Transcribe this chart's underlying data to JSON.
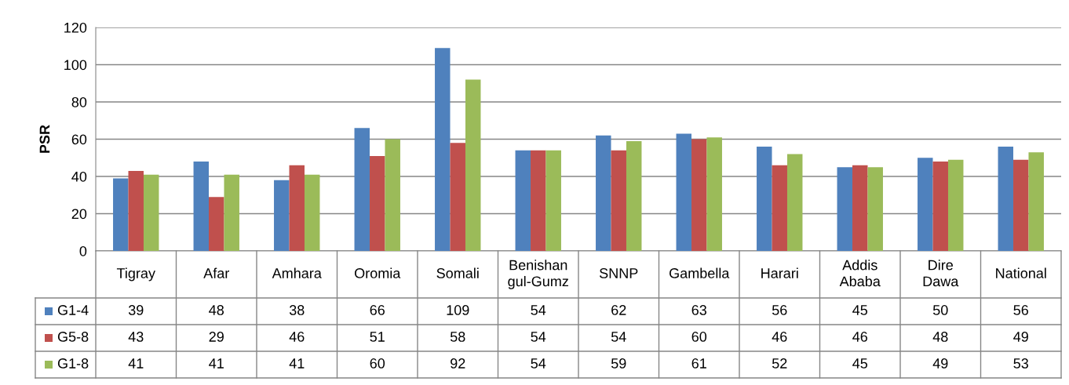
{
  "chart_data": {
    "type": "bar",
    "ylabel": "PSR",
    "categories": [
      "Tigray",
      "Afar",
      "Amhara",
      "Oromia",
      "Somali",
      "Benishan\ngul-Gumz",
      "SNNP",
      "Gambella",
      "Harari",
      "Addis\nAbaba",
      "Dire\nDawa",
      "National"
    ],
    "series": [
      {
        "name": "G1-4",
        "color": "#4f81bd",
        "values": [
          39,
          48,
          38,
          66,
          109,
          54,
          62,
          63,
          56,
          45,
          50,
          56
        ]
      },
      {
        "name": "G5-8",
        "color": "#c0504d",
        "values": [
          43,
          29,
          46,
          51,
          58,
          54,
          54,
          60,
          46,
          46,
          48,
          49
        ]
      },
      {
        "name": "G1-8",
        "color": "#9bbb59",
        "values": [
          41,
          41,
          41,
          60,
          92,
          54,
          59,
          61,
          52,
          45,
          49,
          53
        ]
      }
    ],
    "ylim": [
      0,
      120
    ],
    "yticks": [
      0,
      20,
      40,
      60,
      80,
      100,
      120
    ],
    "grid": "y",
    "data_labels": true,
    "legend": "bottom left"
  }
}
